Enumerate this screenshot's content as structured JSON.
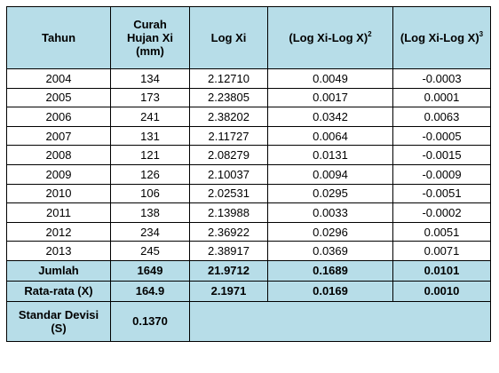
{
  "table": {
    "headers": {
      "tahun": "Tahun",
      "curah_line1": "Curah",
      "curah_line2": "Hujan Xi",
      "curah_line3": "(mm)",
      "logxi": "Log Xi",
      "sq_base": "(Log Xi-Log X)",
      "sq_exp": "2",
      "cube_base": "(Log Xi-Log X)",
      "cube_exp": "3"
    },
    "rows": [
      {
        "tahun": "2004",
        "curah": "134",
        "logxi": "2.12710",
        "sq": "0.0049",
        "cube": "-0.0003"
      },
      {
        "tahun": "2005",
        "curah": "173",
        "logxi": "2.23805",
        "sq": "0.0017",
        "cube": "0.0001"
      },
      {
        "tahun": "2006",
        "curah": "241",
        "logxi": "2.38202",
        "sq": "0.0342",
        "cube": "0.0063"
      },
      {
        "tahun": "2007",
        "curah": "131",
        "logxi": "2.11727",
        "sq": "0.0064",
        "cube": "-0.0005"
      },
      {
        "tahun": "2008",
        "curah": "121",
        "logxi": "2.08279",
        "sq": "0.0131",
        "cube": "-0.0015"
      },
      {
        "tahun": "2009",
        "curah": "126",
        "logxi": "2.10037",
        "sq": "0.0094",
        "cube": "-0.0009"
      },
      {
        "tahun": "2010",
        "curah": "106",
        "logxi": "2.02531",
        "sq": "0.0295",
        "cube": "-0.0051"
      },
      {
        "tahun": "2011",
        "curah": "138",
        "logxi": "2.13988",
        "sq": "0.0033",
        "cube": "-0.0002"
      },
      {
        "tahun": "2012",
        "curah": "234",
        "logxi": "2.36922",
        "sq": "0.0296",
        "cube": "0.0051"
      },
      {
        "tahun": "2013",
        "curah": "245",
        "logxi": "2.38917",
        "sq": "0.0369",
        "cube": "0.0071"
      }
    ],
    "jumlah": {
      "label": "Jumlah",
      "curah": "1649",
      "logxi": "21.9712",
      "sq": "0.1689",
      "cube": "0.0101"
    },
    "rata": {
      "label": "Rata-rata (X)",
      "curah": "164.9",
      "logxi": "2.1971",
      "sq": "0.0169",
      "cube": "0.0010"
    },
    "std": {
      "label_line1": "Standar Devisi",
      "label_line2": "(S)",
      "value": "0.1370"
    }
  }
}
